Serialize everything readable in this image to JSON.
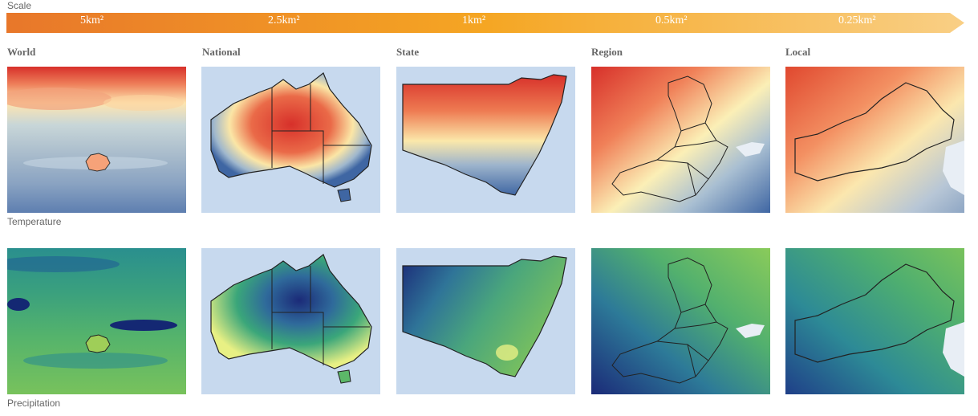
{
  "scale": {
    "label": "Scale",
    "ticks": [
      "5km²",
      "2.5km²",
      "1km²",
      "0.5km²",
      "0.25km²"
    ]
  },
  "columns": [
    "World",
    "National",
    "State",
    "Region",
    "Local"
  ],
  "rows": [
    "Temperature",
    "Precipitation"
  ],
  "colors": {
    "scale_start": "#e8772a",
    "scale_mid": "#f5a623",
    "scale_end": "#f9cf85",
    "ocean": "#c7d9ee",
    "temp_hot": "#d7302a",
    "temp_mid": "#fef3b5",
    "temp_cool": "#4a6fa8",
    "precip_wet": "#1b2a78",
    "precip_mid": "#2e8f9a",
    "precip_dry": "#e8f084"
  }
}
